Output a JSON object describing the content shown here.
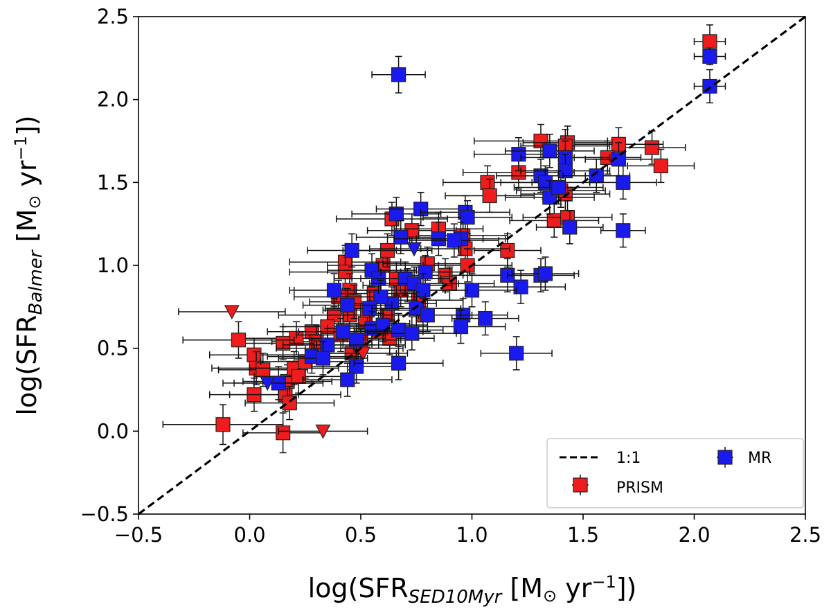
{
  "chart_data": {
    "type": "scatter",
    "xlabel": {
      "pre": "log(SFR",
      "sub": "SED10Myr",
      "mid": " [M",
      "sun": "⊙",
      "unit": " yr",
      "sup": "−1",
      "post": "])"
    },
    "ylabel": {
      "pre": "log(SFR",
      "sub": "Balmer",
      "mid": " [M",
      "sun": "⊙",
      "unit": " yr",
      "sup": "−1",
      "post": "])"
    },
    "xlim": [
      -0.5,
      2.5
    ],
    "ylim": [
      -0.5,
      2.5
    ],
    "xticks": [
      "−0.5",
      "0.0",
      "0.5",
      "1.0",
      "1.5",
      "2.0",
      "2.5"
    ],
    "yticks": [
      "−0.5",
      "0.0",
      "0.5",
      "1.0",
      "1.5",
      "2.0",
      "2.5"
    ],
    "grid": false,
    "legend_position": "lower-right",
    "reference_line": {
      "name": "1:1",
      "slope": 1,
      "intercept": 0,
      "style": "dashed",
      "color": "#000000"
    },
    "series": [
      {
        "name": "PRISM",
        "color": "#ee1c1c",
        "marker": "square",
        "points": [
          [
            2.07,
            2.35,
            0.07,
            0.1
          ],
          [
            1.81,
            1.71,
            0.15,
            0.1
          ],
          [
            1.85,
            1.6,
            0.15,
            0.1
          ],
          [
            1.66,
            1.73,
            0.2,
            0.1
          ],
          [
            1.61,
            1.65,
            0.15,
            0.1
          ],
          [
            1.31,
            1.75,
            0.3,
            0.1
          ],
          [
            1.43,
            1.74,
            0.2,
            0.1
          ],
          [
            1.42,
            1.72,
            0.2,
            0.1
          ],
          [
            1.21,
            1.56,
            0.25,
            0.1
          ],
          [
            1.07,
            1.5,
            0.2,
            0.1
          ],
          [
            1.08,
            1.42,
            0.2,
            0.1
          ],
          [
            1.16,
            1.09,
            0.15,
            0.1
          ],
          [
            1.37,
            1.27,
            0.2,
            0.1
          ],
          [
            1.42,
            1.43,
            0.2,
            0.1
          ],
          [
            1.43,
            1.29,
            0.2,
            0.1
          ],
          [
            1.4,
            1.45,
            0.2,
            0.1
          ],
          [
            0.64,
            1.28,
            0.25,
            0.1
          ],
          [
            0.73,
            1.21,
            0.2,
            0.1
          ],
          [
            0.85,
            1.22,
            0.2,
            0.1
          ],
          [
            0.96,
            1.18,
            0.2,
            0.1
          ],
          [
            0.97,
            1.1,
            0.2,
            0.1
          ],
          [
            0.6,
            1.0,
            0.25,
            0.1
          ],
          [
            0.43,
            1.02,
            0.25,
            0.1
          ],
          [
            0.43,
            0.96,
            0.25,
            0.1
          ],
          [
            0.45,
            0.85,
            0.25,
            0.1
          ],
          [
            0.4,
            0.81,
            0.2,
            0.1
          ],
          [
            0.38,
            0.7,
            0.25,
            0.1
          ],
          [
            0.45,
            0.7,
            0.2,
            0.1
          ],
          [
            0.5,
            0.55,
            0.2,
            0.1
          ],
          [
            0.52,
            0.65,
            0.2,
            0.1
          ],
          [
            0.62,
            0.7,
            0.2,
            0.1
          ],
          [
            0.68,
            0.85,
            0.2,
            0.1
          ],
          [
            0.76,
            0.79,
            0.2,
            0.1
          ],
          [
            0.8,
            1.01,
            0.2,
            0.1
          ],
          [
            0.88,
            0.94,
            0.25,
            0.1
          ],
          [
            0.9,
            0.89,
            0.2,
            0.1
          ],
          [
            0.78,
            0.7,
            0.2,
            0.1
          ],
          [
            0.63,
            0.56,
            0.2,
            0.1
          ],
          [
            0.58,
            0.6,
            0.2,
            0.1
          ],
          [
            0.28,
            0.6,
            0.2,
            0.1
          ],
          [
            0.3,
            0.54,
            0.2,
            0.1
          ],
          [
            0.21,
            0.56,
            0.25,
            0.1
          ],
          [
            0.15,
            0.53,
            0.2,
            0.1
          ],
          [
            -0.05,
            0.55,
            0.25,
            0.11
          ],
          [
            0.02,
            0.46,
            0.2,
            0.1
          ],
          [
            0.03,
            0.38,
            0.2,
            0.1
          ],
          [
            0.06,
            0.37,
            0.2,
            0.1
          ],
          [
            0.02,
            0.22,
            0.2,
            0.1
          ],
          [
            0.16,
            0.22,
            0.25,
            0.1
          ],
          [
            0.17,
            0.3,
            0.2,
            0.1
          ],
          [
            0.2,
            0.38,
            0.2,
            0.1
          ],
          [
            0.18,
            0.17,
            0.2,
            0.1
          ],
          [
            0.22,
            0.33,
            0.2,
            0.1
          ],
          [
            0.25,
            0.42,
            0.2,
            0.1
          ],
          [
            0.32,
            0.5,
            0.2,
            0.1
          ],
          [
            0.35,
            0.63,
            0.2,
            0.1
          ],
          [
            0.41,
            0.58,
            0.2,
            0.1
          ],
          [
            0.46,
            0.47,
            0.2,
            0.1
          ],
          [
            0.5,
            0.52,
            0.2,
            0.1
          ],
          [
            -0.12,
            0.04,
            0.27,
            0.12
          ],
          [
            0.15,
            -0.01,
            0.18,
            0.12
          ],
          [
            0.47,
            0.78,
            0.2,
            0.1
          ],
          [
            0.53,
            0.73,
            0.2,
            0.1
          ],
          [
            0.56,
            0.83,
            0.2,
            0.1
          ],
          [
            0.66,
            0.92,
            0.2,
            0.1
          ],
          [
            0.71,
            0.88,
            0.2,
            0.1
          ],
          [
            0.62,
            1.09,
            0.2,
            0.1
          ],
          [
            0.98,
            1.0,
            0.2,
            0.1
          ]
        ],
        "upper_limits": [
          [
            -0.08,
            0.72,
            0.24
          ],
          [
            0.33,
            0.0,
            0.2
          ],
          [
            0.49,
            0.5,
            0.2
          ],
          [
            0.51,
            0.47,
            0.2
          ]
        ]
      },
      {
        "name": "MR",
        "color": "#1a1aee",
        "marker": "square",
        "points": [
          [
            0.67,
            2.15,
            0.12,
            0.11
          ],
          [
            2.07,
            2.26,
            0.07,
            0.05
          ],
          [
            2.07,
            2.08,
            0.07,
            0.1
          ],
          [
            1.21,
            1.67,
            0.2,
            0.1
          ],
          [
            1.35,
            1.69,
            0.2,
            0.1
          ],
          [
            1.42,
            1.65,
            0.2,
            0.1
          ],
          [
            1.31,
            1.54,
            0.2,
            0.1
          ],
          [
            1.33,
            1.5,
            0.2,
            0.1
          ],
          [
            1.42,
            1.57,
            0.2,
            0.1
          ],
          [
            1.56,
            1.54,
            0.15,
            0.1
          ],
          [
            1.68,
            1.5,
            0.15,
            0.1
          ],
          [
            1.66,
            1.64,
            0.15,
            0.1
          ],
          [
            1.35,
            1.41,
            0.2,
            0.1
          ],
          [
            1.39,
            1.47,
            0.2,
            0.1
          ],
          [
            1.44,
            1.23,
            0.15,
            0.1
          ],
          [
            1.68,
            1.21,
            0.1,
            0.1
          ],
          [
            1.16,
            0.94,
            0.2,
            0.1
          ],
          [
            1.22,
            0.87,
            0.2,
            0.1
          ],
          [
            1.31,
            0.94,
            0.15,
            0.1
          ],
          [
            1.33,
            0.95,
            0.15,
            0.1
          ],
          [
            1.0,
            0.85,
            0.2,
            0.1
          ],
          [
            0.96,
            0.7,
            0.2,
            0.1
          ],
          [
            1.06,
            0.68,
            0.15,
            0.1
          ],
          [
            0.95,
            0.63,
            0.2,
            0.1
          ],
          [
            1.2,
            0.47,
            0.16,
            0.1
          ],
          [
            0.66,
            1.31,
            0.2,
            0.1
          ],
          [
            0.77,
            1.34,
            0.2,
            0.1
          ],
          [
            0.97,
            1.32,
            0.2,
            0.1
          ],
          [
            0.98,
            1.29,
            0.2,
            0.1
          ],
          [
            0.68,
            1.17,
            0.2,
            0.1
          ],
          [
            0.85,
            1.16,
            0.2,
            0.1
          ],
          [
            0.95,
            1.16,
            0.2,
            0.1
          ],
          [
            0.92,
            1.15,
            0.2,
            0.1
          ],
          [
            0.46,
            1.09,
            0.2,
            0.1
          ],
          [
            0.55,
            0.97,
            0.2,
            0.1
          ],
          [
            0.58,
            0.92,
            0.2,
            0.1
          ],
          [
            0.7,
            0.92,
            0.2,
            0.1
          ],
          [
            0.74,
            0.89,
            0.2,
            0.1
          ],
          [
            0.79,
            0.96,
            0.2,
            0.1
          ],
          [
            0.78,
            0.85,
            0.2,
            0.1
          ],
          [
            0.64,
            0.77,
            0.2,
            0.1
          ],
          [
            0.59,
            0.81,
            0.2,
            0.1
          ],
          [
            0.54,
            0.74,
            0.2,
            0.1
          ],
          [
            0.44,
            0.76,
            0.2,
            0.1
          ],
          [
            0.38,
            0.85,
            0.2,
            0.1
          ],
          [
            0.55,
            0.62,
            0.2,
            0.1
          ],
          [
            0.6,
            0.64,
            0.2,
            0.1
          ],
          [
            0.67,
            0.61,
            0.2,
            0.1
          ],
          [
            0.73,
            0.59,
            0.2,
            0.1
          ],
          [
            0.75,
            0.74,
            0.2,
            0.1
          ],
          [
            0.8,
            0.7,
            0.2,
            0.1
          ],
          [
            0.48,
            0.55,
            0.2,
            0.1
          ],
          [
            0.48,
            0.39,
            0.2,
            0.1
          ],
          [
            0.44,
            0.31,
            0.2,
            0.1
          ],
          [
            0.35,
            0.52,
            0.2,
            0.1
          ],
          [
            0.28,
            0.45,
            0.2,
            0.1
          ],
          [
            0.33,
            0.44,
            0.2,
            0.1
          ],
          [
            0.13,
            0.29,
            0.2,
            0.1
          ],
          [
            0.67,
            0.41,
            0.2,
            0.1
          ],
          [
            0.42,
            0.6,
            0.2,
            0.1
          ]
        ],
        "upper_limits": [
          [
            0.74,
            1.1,
            0.2
          ],
          [
            0.08,
            0.29,
            0.2
          ]
        ]
      }
    ]
  }
}
